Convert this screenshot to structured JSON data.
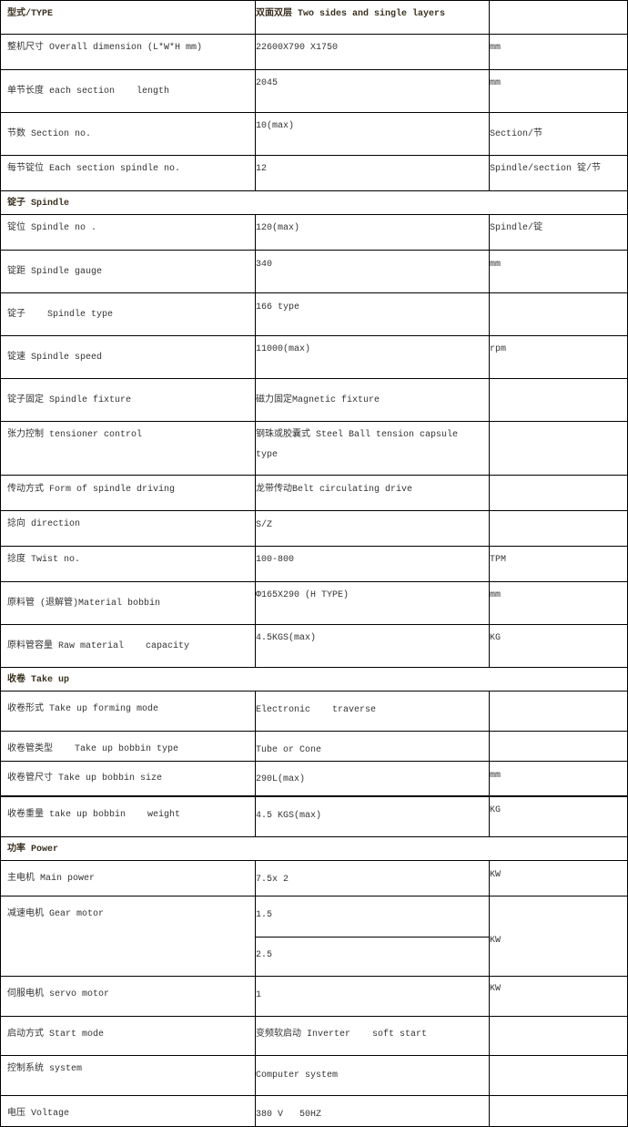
{
  "rows": [
    {
      "label": "型式/TYPE",
      "value": "双面双层 Two sides and single layers",
      "unit": "",
      "bold": true
    },
    {
      "label": "整机尺寸 Overall dimension (L*W*H mm)",
      "value": "22600X790 X1750",
      "unit": "mm"
    },
    {
      "label": "单节长度 each section    length",
      "value": "2045",
      "unit": "mm"
    },
    {
      "label": "节数 Section no.",
      "value": "10(max)",
      "unit": "Section/节"
    },
    {
      "label": "每节锭位 Each section spindle no.",
      "value": "12",
      "unit": "Spindle/section 锭/节"
    },
    {
      "header": "锭子 Spindle"
    },
    {
      "label": "锭位 Spindle no .",
      "value": "120(max)",
      "unit": "Spindle/锭"
    },
    {
      "label": "锭距 Spindle gauge",
      "value": "340",
      "unit": "mm"
    },
    {
      "label": "锭子    Spindle type",
      "value": "166 type",
      "unit": ""
    },
    {
      "label": "锭速 Spindle speed",
      "value": "11000(max)",
      "unit": "rpm"
    },
    {
      "label": "锭子固定 Spindle fixture",
      "value": "磁力固定Magnetic fixture",
      "unit": ""
    },
    {
      "label": "张力控制 tensioner control",
      "value": "钢珠或胶囊式 Steel Ball tension capsule\ntype",
      "unit": ""
    },
    {
      "label": "传动方式 Form of spindle driving",
      "value": "龙带传动Belt circulating drive",
      "unit": ""
    },
    {
      "label": "捻向 direction",
      "value": "S/Z",
      "unit": ""
    },
    {
      "label": "捻度 Twist no.",
      "value": "100-800",
      "unit": "TPM"
    },
    {
      "label": "原料管 (退解管)Material bobbin",
      "value": "Φ165X290 (H TYPE)",
      "unit": "mm"
    },
    {
      "label": "原料管容量 Raw material    capacity",
      "value": "4.5KGS(max)",
      "unit": "KG"
    },
    {
      "header": "收卷 Take up"
    },
    {
      "label": "收卷形式 Take up forming mode",
      "value": "Electronic    traverse",
      "unit": ""
    },
    {
      "label": "收卷管类型    Take up bobbin type",
      "value": "Tube or Cone",
      "unit": ""
    },
    {
      "label": "收卷管尺寸 Take up bobbin size",
      "value": "290L(max)",
      "unit": "mm"
    },
    {
      "label": "收卷重量 take up bobbin    weight",
      "value": "4.5 KGS(max)",
      "unit": "KG"
    },
    {
      "header": "功率 Power"
    },
    {
      "label": "主电机 Main power",
      "value": "7.5x 2",
      "unit": "KW"
    },
    {
      "label": "减速电机 Gear motor",
      "values": [
        "1.5",
        "2.5"
      ],
      "unit": "KW"
    },
    {
      "label": "伺服电机 servo motor",
      "value": "1",
      "unit": "KW"
    },
    {
      "label": "启动方式 Start mode",
      "value": "变频软启动 Inverter    soft start",
      "unit": ""
    },
    {
      "label": "控制系统 system",
      "value": "Computer system",
      "unit": ""
    },
    {
      "label": "电压 Voltage",
      "value": "380 V   50HZ",
      "unit": ""
    }
  ]
}
